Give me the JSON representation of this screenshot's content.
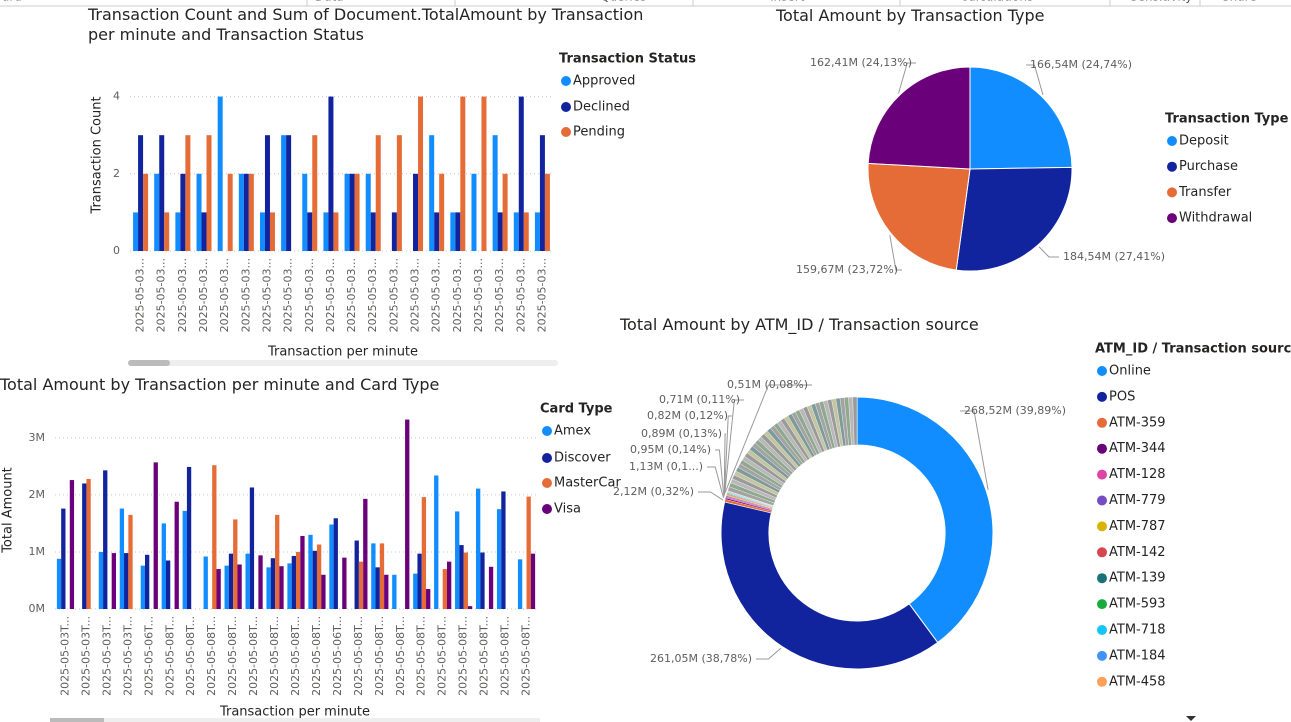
{
  "ribbon": [
    "ard",
    "Data",
    "Queries",
    "Insert",
    "Calculations",
    "Sensitivity",
    "Share"
  ],
  "chart_data": [
    {
      "type": "bar",
      "title": "Transaction Count and Sum of Document.TotalAmount by Transaction per minute and Transaction Status",
      "xlabel": "Transaction per minute",
      "ylabel": "Transaction Count",
      "legend_title": "Transaction Status",
      "categories": [
        "2025-05-03...",
        "2025-05-03...",
        "2025-05-03...",
        "2025-05-03...",
        "2025-05-03...",
        "2025-05-03...",
        "2025-05-03...",
        "2025-05-03...",
        "2025-05-03...",
        "2025-05-03...",
        "2025-05-03...",
        "2025-05-03...",
        "2025-05-03...",
        "2025-05-03...",
        "2025-05-03...",
        "2025-05-03...",
        "2025-05-03...",
        "2025-05-03...",
        "2025-05-03...",
        "2025-05-03..."
      ],
      "series": [
        {
          "name": "Approved",
          "color": "#118dff",
          "values": [
            1,
            2,
            1,
            2,
            4,
            2,
            1,
            3,
            2,
            1,
            2,
            2,
            null,
            null,
            3,
            1,
            2,
            3,
            1,
            1
          ]
        },
        {
          "name": "Declined",
          "color": "#12239e",
          "values": [
            3,
            3,
            2,
            1,
            null,
            2,
            3,
            3,
            1,
            4,
            2,
            1,
            1,
            2,
            1,
            1,
            null,
            1,
            4,
            3
          ]
        },
        {
          "name": "Pending",
          "color": "#e66c37",
          "values": [
            2,
            1,
            3,
            3,
            2,
            2,
            1,
            null,
            3,
            1,
            2,
            3,
            3,
            4,
            2,
            4,
            4,
            2,
            1,
            2
          ]
        }
      ],
      "ylim": [
        0,
        4.3
      ],
      "yticks": [
        0,
        2,
        4
      ],
      "grid": true
    },
    {
      "type": "pie",
      "title": "Total Amount by Transaction Type",
      "legend_title": "Transaction Type",
      "categories": [
        "Deposit",
        "Purchase",
        "Transfer",
        "Withdrawal"
      ],
      "values": [
        166.54,
        184.54,
        159.67,
        162.41
      ],
      "value_labels": [
        "166,54M (24,74%)",
        "184,54M (27,41%)",
        "159,67M (23,72%)",
        "162,41M (24,13%)"
      ],
      "colors": [
        "#118dff",
        "#12239e",
        "#e66c37",
        "#6b007b"
      ]
    },
    {
      "type": "bar",
      "title": "Total Amount by Transaction per minute and Card Type",
      "xlabel": "Transaction per minute",
      "ylabel": "Total Amount",
      "legend_title": "Card Type",
      "categories": [
        "2025-05-03T...",
        "2025-05-03T...",
        "2025-05-03T...",
        "2025-05-03T...",
        "2025-05-06T...",
        "2025-05-08T...",
        "2025-05-08T...",
        "2025-05-08T...",
        "2025-05-08T...",
        "2025-05-08T...",
        "2025-05-08T...",
        "2025-05-08T...",
        "2025-05-08T...",
        "2025-05-06T...",
        "2025-05-08T...",
        "2025-05-08T...",
        "2025-05-08T...",
        "2025-05-08T...",
        "2025-05-08T...",
        "2025-05-08T...",
        "2025-05-08T...",
        "2025-05-08T...",
        "2025-05-08T..."
      ],
      "series": [
        {
          "name": "Amex",
          "color": "#118dff",
          "values": [
            880000,
            null,
            1000000,
            1760000,
            760000,
            1500000,
            1720000,
            920000,
            760000,
            970000,
            730000,
            800000,
            1300000,
            1480000,
            null,
            1150000,
            600000,
            620000,
            2340000,
            1710000,
            2110000,
            1750000,
            870000
          ]
        },
        {
          "name": "Discover",
          "color": "#12239e",
          "values": [
            1760000,
            2200000,
            2430000,
            980000,
            950000,
            850000,
            2490000,
            null,
            970000,
            2130000,
            890000,
            930000,
            1020000,
            1590000,
            1200000,
            730000,
            null,
            970000,
            null,
            1120000,
            990000,
            2060000,
            null
          ]
        },
        {
          "name": "MasterCar",
          "color": "#e66c37",
          "values": [
            null,
            2280000,
            null,
            1650000,
            null,
            null,
            null,
            2520000,
            1570000,
            null,
            1650000,
            1000000,
            1130000,
            null,
            830000,
            1150000,
            null,
            1960000,
            700000,
            990000,
            null,
            null,
            1970000
          ]
        },
        {
          "name": "Visa",
          "color": "#6b007b",
          "values": [
            2260000,
            null,
            980000,
            null,
            2570000,
            1880000,
            null,
            700000,
            780000,
            940000,
            750000,
            1280000,
            600000,
            900000,
            1930000,
            600000,
            3320000,
            350000,
            830000,
            50000,
            740000,
            null,
            970000
          ]
        }
      ],
      "ylim": [
        0,
        3400000
      ],
      "yticks": [
        {
          "value": 0,
          "label": "0M"
        },
        {
          "value": 1000000,
          "label": "1M"
        },
        {
          "value": 2000000,
          "label": "2M"
        },
        {
          "value": 3000000,
          "label": "3M"
        }
      ],
      "grid": true
    },
    {
      "type": "donut",
      "title": "Total Amount by ATM_ID / Transaction source",
      "legend_title": "ATM_ID / Transaction source",
      "categories": [
        "Online",
        "POS",
        "ATM-359",
        "ATM-344",
        "ATM-128",
        "ATM-779",
        "ATM-787",
        "ATM-142",
        "ATM-139",
        "ATM-593",
        "ATM-718",
        "ATM-184",
        "ATM-458",
        null,
        null,
        null,
        null,
        null,
        null,
        null,
        null,
        null,
        null,
        null,
        null,
        null,
        null,
        null,
        null,
        null,
        null,
        null,
        null,
        null,
        null,
        null,
        null,
        null,
        null,
        null,
        null,
        null,
        null,
        null,
        null,
        null,
        null,
        null,
        null,
        null,
        null,
        null,
        null
      ],
      "values": [
        268.52,
        261.05,
        2.12,
        1.13,
        0.95,
        0.89,
        0.82,
        0.71,
        0.51,
        0.5,
        0.5,
        0.5,
        0.5,
        3.36,
        3.36,
        3.36,
        3.36,
        3.36,
        3.36,
        3.36,
        3.36,
        3.36,
        3.36,
        3.36,
        3.36,
        3.36,
        3.36,
        3.36,
        3.36,
        3.36,
        3.36,
        3.36,
        3.36,
        3.36,
        3.36,
        3.36,
        3.36,
        3.36,
        3.36,
        3.36,
        3.36,
        3.36,
        3.36,
        3.36,
        3.36,
        3.36,
        3.36,
        3.36,
        3.36,
        3.36,
        3.36,
        3.36,
        3.36
      ],
      "value_labels": [
        "268,52M (39,89%)",
        "261,05M (38,78%)",
        "2,12M (0,32%)",
        "1,13M (0,1...)",
        "0,95M (0,14%)",
        "0,89M (0,13%)",
        "0,82M (0,12%)",
        "0,71M (0,11%)",
        "0,51M (0,08%)",
        null,
        null,
        null,
        null,
        null,
        null,
        null,
        null,
        null,
        null,
        null,
        null,
        null,
        null,
        null,
        null,
        null,
        null,
        null,
        null,
        null,
        null,
        null,
        null,
        null,
        null,
        null,
        null,
        null,
        null,
        null,
        null,
        null,
        null,
        null,
        null,
        null,
        null,
        null,
        null,
        null,
        null,
        null,
        null
      ],
      "colors": [
        "#118dff",
        "#12239e",
        "#e66c37",
        "#6b007b",
        "#e044a7",
        "#744ec2",
        "#d9b300",
        "#d64550",
        "#197278",
        "#1aab40",
        "#15c6f4",
        "#4092ff",
        "#ffa058"
      ],
      "other_colors": [
        "#a3a3a3",
        "#8fa88f",
        "#b8b8b8",
        "#9a9a9a",
        "#c4c4a0",
        "#7d9b9b"
      ]
    }
  ]
}
